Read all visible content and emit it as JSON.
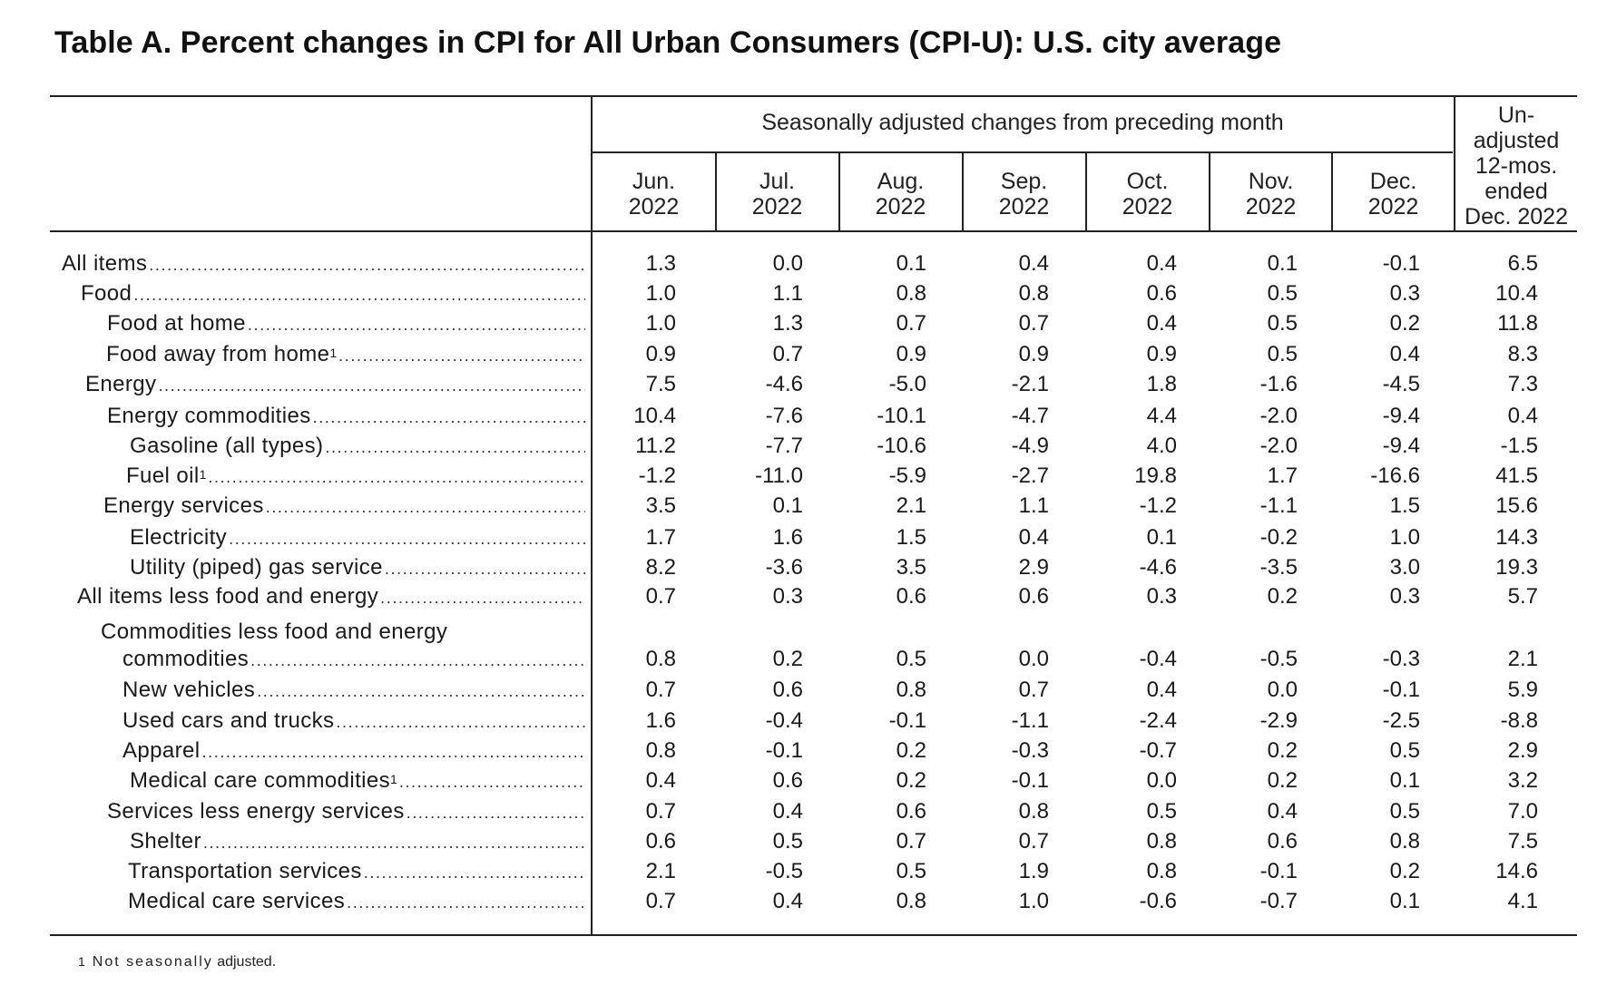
{
  "title": "Table A. Percent changes in CPI for All Urban Consumers (CPI-U): U.S. city average",
  "header": {
    "seasonal_group": "Seasonally adjusted changes from preceding month",
    "months": [
      {
        "month": "Jun.",
        "year": "2022"
      },
      {
        "month": "Jul.",
        "year": "2022"
      },
      {
        "month": "Aug.",
        "year": "2022"
      },
      {
        "month": "Sep.",
        "year": "2022"
      },
      {
        "month": "Oct.",
        "year": "2022"
      },
      {
        "month": "Nov.",
        "year": "2022"
      },
      {
        "month": "Dec.",
        "year": "2022"
      }
    ],
    "unadjusted": [
      "Un-",
      "adjusted",
      "12-mos.",
      "ended",
      "Dec. 2022"
    ]
  },
  "rows": [
    {
      "label": "All items",
      "values": [
        "1.3",
        "0.0",
        "0.1",
        "0.4",
        "0.4",
        "0.1",
        "-0.1",
        "6.5"
      ]
    },
    {
      "label": "Food",
      "values": [
        "1.0",
        "1.1",
        "0.8",
        "0.8",
        "0.6",
        "0.5",
        "0.3",
        "10.4"
      ]
    },
    {
      "label": "Food at home",
      "values": [
        "1.0",
        "1.3",
        "0.7",
        "0.7",
        "0.4",
        "0.5",
        "0.2",
        "11.8"
      ]
    },
    {
      "label": "Food away from home",
      "footnote": "1",
      "values": [
        "0.9",
        "0.7",
        "0.9",
        "0.9",
        "0.9",
        "0.5",
        "0.4",
        "8.3"
      ]
    },
    {
      "label": "Energy",
      "values": [
        "7.5",
        "-4.6",
        "-5.0",
        "-2.1",
        "1.8",
        "-1.6",
        "-4.5",
        "7.3"
      ]
    },
    {
      "label": "Energy commodities",
      "values": [
        "10.4",
        "-7.6",
        "-10.1",
        "-4.7",
        "4.4",
        "-2.0",
        "-9.4",
        "0.4"
      ]
    },
    {
      "label": "Gasoline (all types)",
      "values": [
        "11.2",
        "-7.7",
        "-10.6",
        "-4.9",
        "4.0",
        "-2.0",
        "-9.4",
        "-1.5"
      ]
    },
    {
      "label": "Fuel oil",
      "footnote": "1",
      "values": [
        "-1.2",
        "-11.0",
        "-5.9",
        "-2.7",
        "19.8",
        "1.7",
        "-16.6",
        "41.5"
      ]
    },
    {
      "label": "Energy services",
      "values": [
        "3.5",
        "0.1",
        "2.1",
        "1.1",
        "-1.2",
        "-1.1",
        "1.5",
        "15.6"
      ]
    },
    {
      "label": "Electricity",
      "values": [
        "1.7",
        "1.6",
        "1.5",
        "0.4",
        "0.1",
        "-0.2",
        "1.0",
        "14.3"
      ]
    },
    {
      "label": "Utility (piped) gas service",
      "values": [
        "8.2",
        "-3.6",
        "3.5",
        "2.9",
        "-4.6",
        "-3.5",
        "3.0",
        "19.3"
      ]
    },
    {
      "label": "All items less food and energy",
      "values": [
        "0.7",
        "0.3",
        "0.6",
        "0.6",
        "0.3",
        "0.2",
        "0.3",
        "5.7"
      ]
    },
    {
      "label": "Commodities less food and energy",
      "label_line2": "commodities",
      "values": [
        "0.8",
        "0.2",
        "0.5",
        "0.0",
        "-0.4",
        "-0.5",
        "-0.3",
        "2.1"
      ]
    },
    {
      "label": "New vehicles",
      "values": [
        "0.7",
        "0.6",
        "0.8",
        "0.7",
        "0.4",
        "0.0",
        "-0.1",
        "5.9"
      ]
    },
    {
      "label": "Used cars and trucks",
      "values": [
        "1.6",
        "-0.4",
        "-0.1",
        "-1.1",
        "-2.4",
        "-2.9",
        "-2.5",
        "-8.8"
      ]
    },
    {
      "label": "Apparel",
      "values": [
        "0.8",
        "-0.1",
        "0.2",
        "-0.3",
        "-0.7",
        "0.2",
        "0.5",
        "2.9"
      ]
    },
    {
      "label": "Medical care commodities",
      "footnote": "1",
      "values": [
        "0.4",
        "0.6",
        "0.2",
        "-0.1",
        "0.0",
        "0.2",
        "0.1",
        "3.2"
      ]
    },
    {
      "label": "Services less energy services",
      "values": [
        "0.7",
        "0.4",
        "0.6",
        "0.8",
        "0.5",
        "0.4",
        "0.5",
        "7.0"
      ]
    },
    {
      "label": "Shelter",
      "values": [
        "0.6",
        "0.5",
        "0.7",
        "0.7",
        "0.8",
        "0.6",
        "0.8",
        "7.5"
      ]
    },
    {
      "label": "Transportation services",
      "values": [
        "2.1",
        "-0.5",
        "0.5",
        "1.9",
        "0.8",
        "-0.1",
        "0.2",
        "14.6"
      ]
    },
    {
      "label": "Medical care services",
      "values": [
        "0.7",
        "0.4",
        "0.8",
        "1.0",
        "-0.6",
        "-0.7",
        "0.1",
        "4.1"
      ]
    }
  ],
  "footnote": {
    "number": "1",
    "text_a": "Not seasonally",
    "text_b": "adjusted."
  }
}
